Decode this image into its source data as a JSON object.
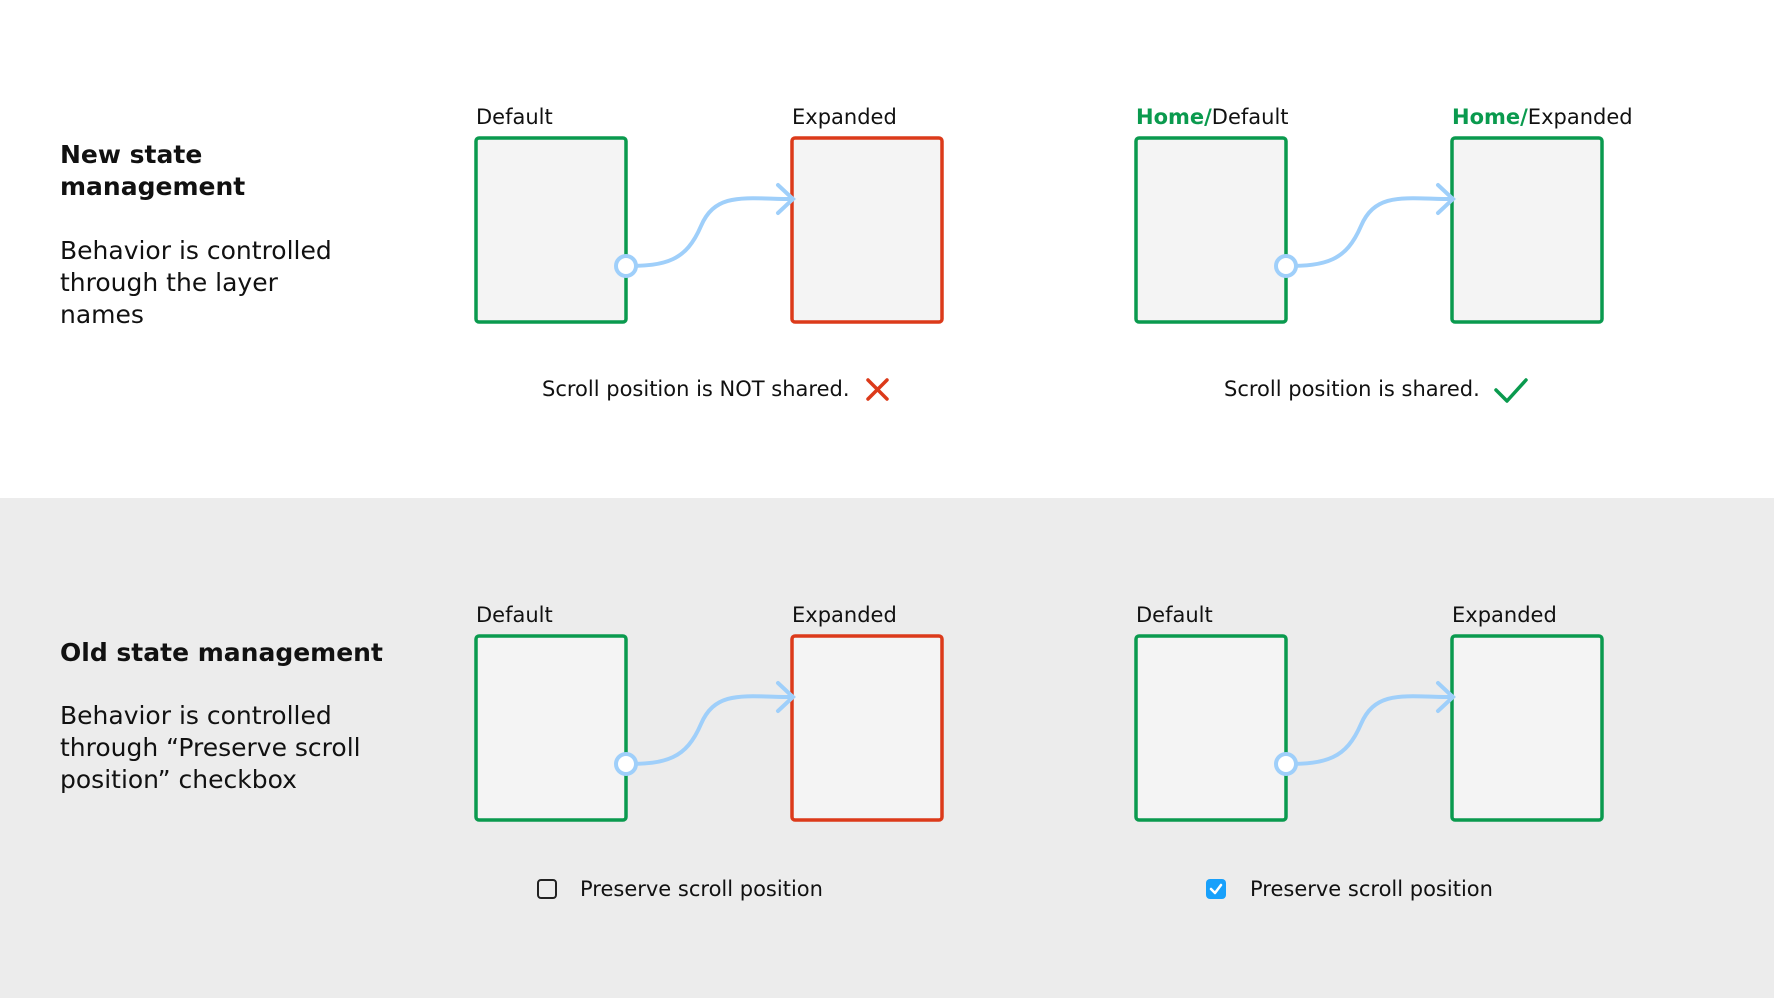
{
  "new_section": {
    "title": "New state management",
    "description": "Behavior is controlled through the layer names",
    "left_pair": {
      "from_label": "Default",
      "to_label": "Expanded",
      "caption": "Scroll position is NOT shared.",
      "status_icon": "x-icon"
    },
    "right_pair": {
      "prefix": "Home/",
      "from_label": "Default",
      "to_label": "Expanded",
      "caption": "Scroll position is shared.",
      "status_icon": "check-icon"
    }
  },
  "old_section": {
    "title": "Old state management",
    "description": "Behavior is controlled through “Preserve scroll position” checkbox",
    "left_pair": {
      "from_label": "Default",
      "to_label": "Expanded",
      "checkbox_label": "Preserve scroll position",
      "checked": false
    },
    "right_pair": {
      "from_label": "Default",
      "to_label": "Expanded",
      "checkbox_label": "Preserve scroll position",
      "checked": true
    }
  },
  "colors": {
    "green": "#0a9a4e",
    "red": "#dc3a1a",
    "connector": "#9fcffa",
    "checkbox": "#18a0fb",
    "frame_fill": "#f4f4f4"
  }
}
